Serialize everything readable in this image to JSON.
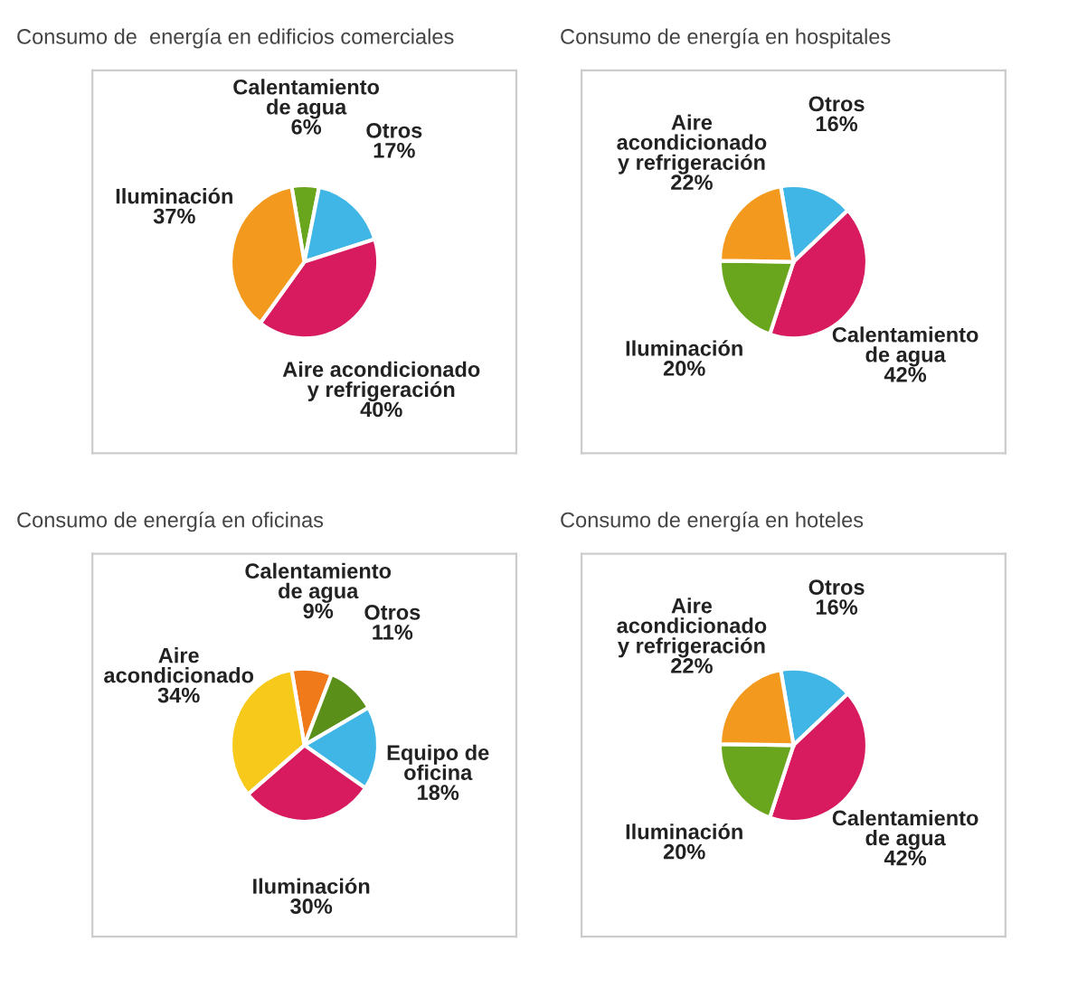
{
  "chart_data": [
    {
      "type": "pie",
      "title": "Consumo de  energía en edificios comerciales",
      "categories": [
        "Calentamiento\nde agua",
        "Otros",
        "Aire acondicionado\ny refrigeración",
        "Iluminación"
      ],
      "values": [
        6,
        17,
        40,
        37
      ],
      "value_labels": [
        "6%",
        "17%",
        "40%",
        "37%"
      ],
      "colors": [
        "#6aa51e",
        "#3fb6e6",
        "#d81b5e",
        "#f39a1e"
      ]
    },
    {
      "type": "pie",
      "title": "Consumo de energía en hospitales",
      "categories": [
        "Otros",
        "Calentamiento\nde agua",
        "Iluminación",
        "Aire\nacondicionado\ny refrigeración"
      ],
      "values": [
        16,
        42,
        20,
        22
      ],
      "value_labels": [
        "16%",
        "42%",
        "20%",
        "22%"
      ],
      "colors": [
        "#3fb6e6",
        "#d81b5e",
        "#6aa51e",
        "#f39a1e"
      ]
    },
    {
      "type": "pie",
      "title": "Consumo de energía en oficinas",
      "categories": [
        "Calentamiento\nde agua",
        "Otros",
        "Equipo de\noficina",
        "Iluminación",
        "Aire\nacondicionado"
      ],
      "values": [
        9,
        11,
        18,
        30,
        34
      ],
      "value_labels": [
        "9%",
        "11%",
        "18%",
        "30%",
        "34%"
      ],
      "colors": [
        "#f07a1a",
        "#5a8f1a",
        "#3fb6e6",
        "#d81b5e",
        "#f7c91a"
      ]
    },
    {
      "type": "pie",
      "title": "Consumo de energía en hoteles",
      "categories": [
        "Otros",
        "Calentamiento\nde agua",
        "Iluminación",
        "Aire\nacondicionado\ny refrigeración"
      ],
      "values": [
        16,
        42,
        20,
        22
      ],
      "value_labels": [
        "16%",
        "42%",
        "20%",
        "22%"
      ],
      "colors": [
        "#3fb6e6",
        "#d81b5e",
        "#6aa51e",
        "#f39a1e"
      ]
    }
  ]
}
